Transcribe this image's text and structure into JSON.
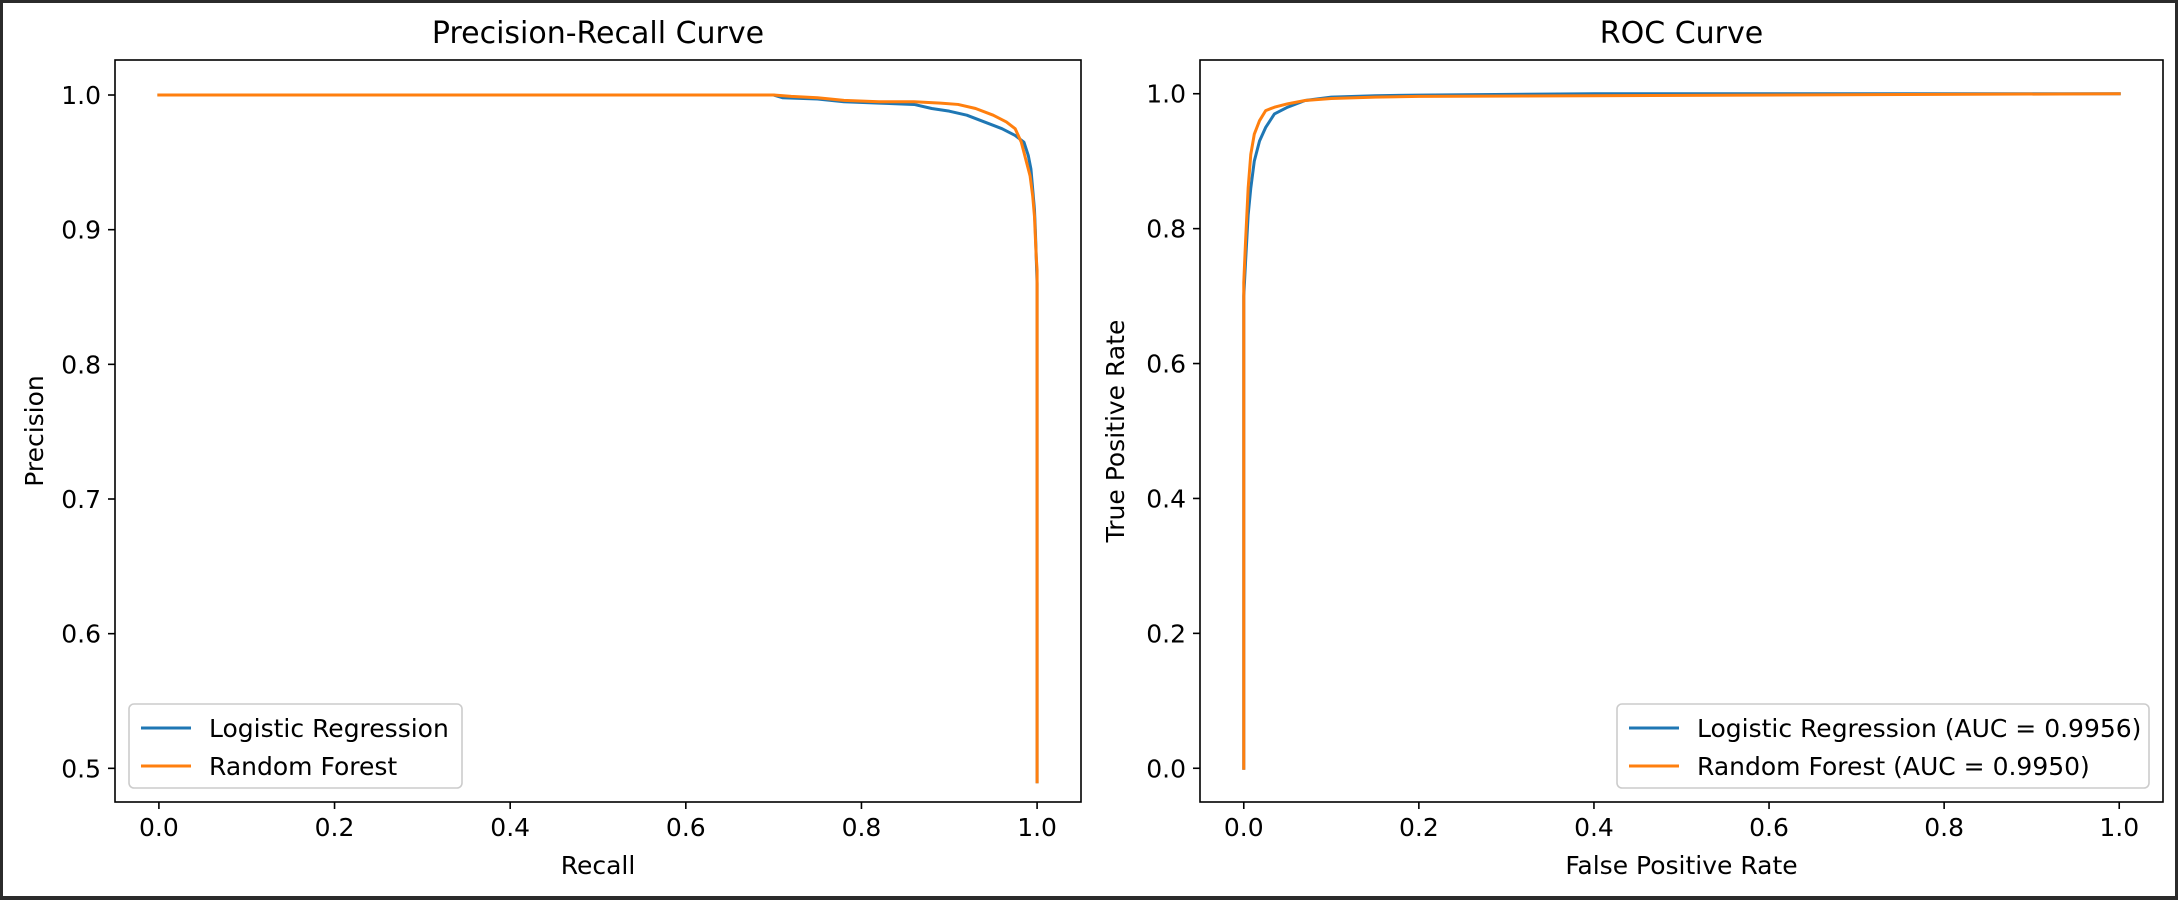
{
  "chart_data": [
    {
      "type": "line",
      "title": "Precision-Recall Curve",
      "xlabel": "Recall",
      "ylabel": "Precision",
      "xlim": [
        -0.05,
        1.05
      ],
      "ylim": [
        0.475,
        1.026
      ],
      "xticks": [
        0.0,
        0.2,
        0.4,
        0.6,
        0.8,
        1.0
      ],
      "xtick_labels": [
        "0.0",
        "0.2",
        "0.4",
        "0.6",
        "0.8",
        "1.0"
      ],
      "yticks": [
        0.5,
        0.6,
        0.7,
        0.8,
        0.9,
        1.0
      ],
      "ytick_labels": [
        "0.5",
        "0.6",
        "0.7",
        "0.8",
        "0.9",
        "1.0"
      ],
      "grid": false,
      "legend_position": "lower left",
      "series": [
        {
          "name": "Logistic Regression",
          "color": "#1f77b4",
          "x": [
            0.0,
            0.7,
            0.71,
            0.75,
            0.78,
            0.82,
            0.86,
            0.88,
            0.9,
            0.92,
            0.94,
            0.96,
            0.975,
            0.985,
            0.99,
            0.993,
            0.995,
            0.997,
            0.998,
            0.999,
            1.0,
            1.0,
            1.0
          ],
          "y": [
            1.0,
            1.0,
            0.998,
            0.997,
            0.995,
            0.994,
            0.993,
            0.99,
            0.988,
            0.985,
            0.98,
            0.975,
            0.97,
            0.965,
            0.955,
            0.945,
            0.93,
            0.915,
            0.9,
            0.88,
            0.86,
            0.7,
            0.49
          ]
        },
        {
          "name": "Random Forest",
          "color": "#ff7f0e",
          "x": [
            0.0,
            0.7,
            0.72,
            0.75,
            0.78,
            0.82,
            0.86,
            0.89,
            0.91,
            0.93,
            0.95,
            0.965,
            0.975,
            0.982,
            0.988,
            0.992,
            0.995,
            0.997,
            0.998,
            0.999,
            1.0,
            1.0
          ],
          "y": [
            1.0,
            1.0,
            0.999,
            0.998,
            0.996,
            0.995,
            0.995,
            0.994,
            0.993,
            0.99,
            0.985,
            0.98,
            0.975,
            0.965,
            0.95,
            0.94,
            0.925,
            0.91,
            0.895,
            0.88,
            0.87,
            0.49
          ]
        }
      ]
    },
    {
      "type": "line",
      "title": "ROC Curve",
      "xlabel": "False Positive Rate",
      "ylabel": "True Positive Rate",
      "xlim": [
        -0.05,
        1.05
      ],
      "ylim": [
        -0.05,
        1.05
      ],
      "xticks": [
        0.0,
        0.2,
        0.4,
        0.6,
        0.8,
        1.0
      ],
      "xtick_labels": [
        "0.0",
        "0.2",
        "0.4",
        "0.6",
        "0.8",
        "1.0"
      ],
      "yticks": [
        0.0,
        0.2,
        0.4,
        0.6,
        0.8,
        1.0
      ],
      "ytick_labels": [
        "0.0",
        "0.2",
        "0.4",
        "0.6",
        "0.8",
        "1.0"
      ],
      "grid": false,
      "legend_position": "lower right",
      "series": [
        {
          "name": "Logistic Regression (AUC = 0.9956)",
          "color": "#1f77b4",
          "x": [
            0.0,
            0.0,
            0.002,
            0.005,
            0.008,
            0.012,
            0.018,
            0.025,
            0.035,
            0.05,
            0.07,
            0.1,
            0.15,
            0.2,
            0.4,
            1.0
          ],
          "y": [
            0.0,
            0.7,
            0.75,
            0.82,
            0.86,
            0.9,
            0.93,
            0.95,
            0.97,
            0.98,
            0.99,
            0.995,
            0.997,
            0.998,
            1.0,
            1.0
          ],
          "auc": 0.9956
        },
        {
          "name": "Random Forest (AUC = 0.9950)",
          "color": "#ff7f0e",
          "x": [
            0.0,
            0.0,
            0.002,
            0.005,
            0.008,
            0.012,
            0.018,
            0.025,
            0.035,
            0.05,
            0.07,
            0.1,
            0.15,
            0.2,
            0.4,
            1.0
          ],
          "y": [
            0.0,
            0.72,
            0.78,
            0.86,
            0.91,
            0.94,
            0.96,
            0.975,
            0.98,
            0.985,
            0.99,
            0.993,
            0.995,
            0.996,
            0.997,
            1.0
          ],
          "auc": 0.995
        }
      ]
    }
  ]
}
